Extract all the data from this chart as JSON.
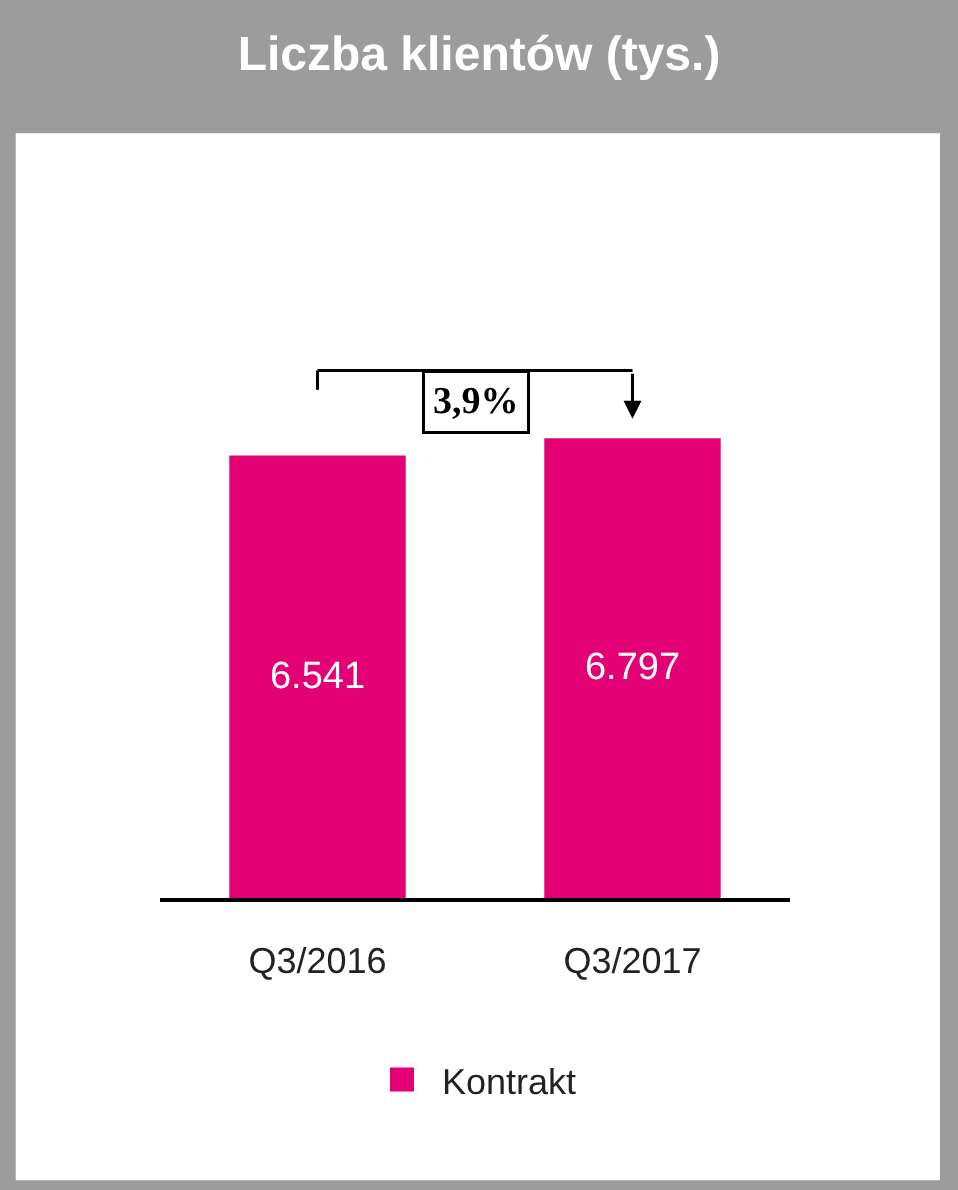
{
  "chart_data": {
    "type": "bar",
    "title": "Liczba klientów (tys.)",
    "categories": [
      "Q3/2016",
      "Q3/2017"
    ],
    "series": [
      {
        "name": "Kontrakt",
        "color": "#e20074",
        "values": [
          6541,
          6797
        ],
        "value_labels": [
          "6.541",
          "6.797"
        ]
      }
    ],
    "annotations": [
      "3,9%"
    ],
    "legend": "bottom"
  }
}
